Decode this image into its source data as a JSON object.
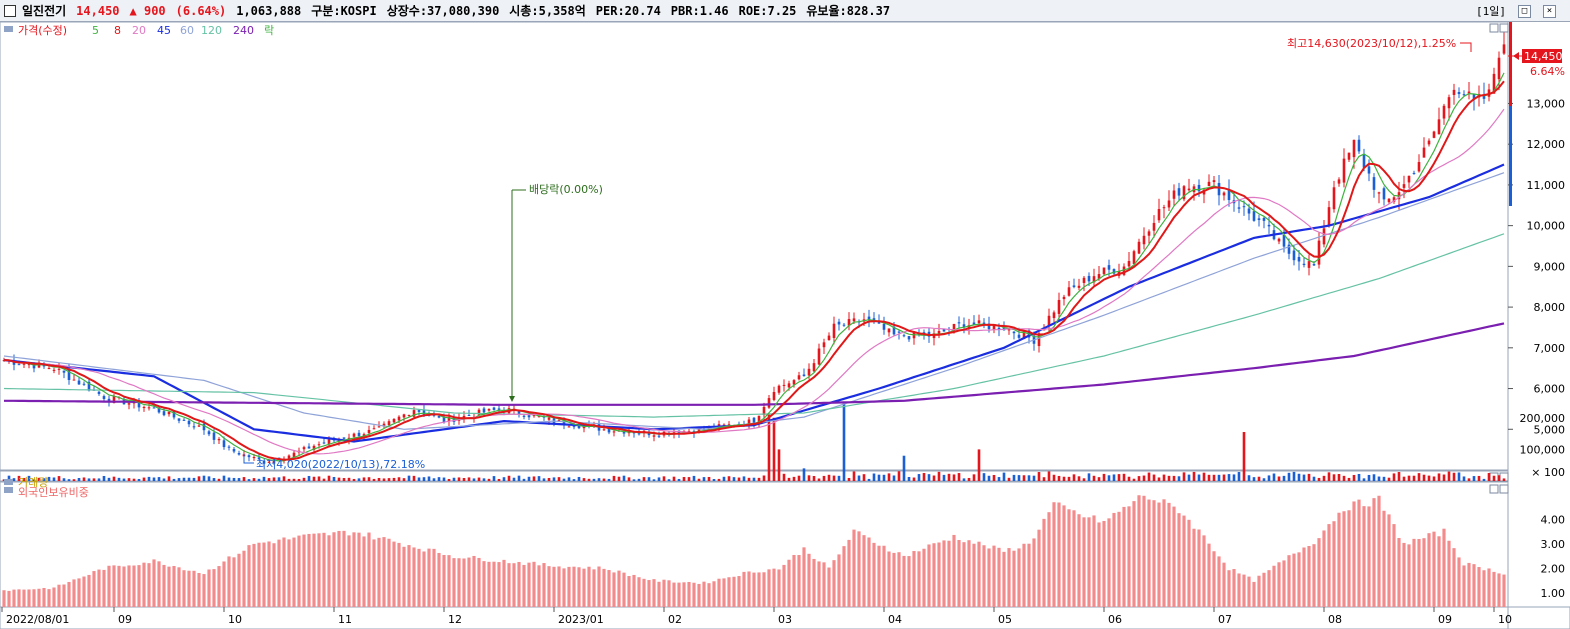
{
  "header": {
    "name": "일진전기",
    "price": "14,450",
    "change": "▲ 900",
    "change_pct": "(6.64%)",
    "volume": "1,063,888",
    "market": "구분:KOSPI",
    "shares": "상장수:37,080,390",
    "mcap": "시총:5,358억",
    "per": "PER:20.74",
    "pbr": "PBR:1.46",
    "roe": "ROE:7.25",
    "float": "유보율:828.37",
    "period": "[1일]"
  },
  "legend": {
    "price": [
      "가격(수정)",
      "5",
      "8",
      "20",
      "45",
      "60",
      "120",
      "240",
      "락"
    ],
    "volume": "거래량",
    "foreign": "외국인보유비중"
  },
  "annotations": {
    "high": "최고14,630(2023/10/12),1.25%",
    "low": "최저4,020(2022/10/13),72.18%",
    "dividend": "배당락(0.00%)",
    "price_tag": "14,450",
    "pct_tag": "6.64%"
  },
  "colors": {
    "up": "#e4151d",
    "down": "#1b5fd6",
    "ma5": "#3fb23f",
    "ma8": "#e01818",
    "ma20": "#e079c4",
    "ma45": "#1a2ee0",
    "ma60": "#8fa3d8",
    "ma120": "#66c2a5",
    "ma240": "#7a1fb0",
    "foreign": "#f28b8b"
  },
  "chart_data": [
    {
      "type": "candlestick",
      "title": "가격(수정)",
      "ylim": [
        4000,
        15000
      ],
      "y_ticks": [
        "5,000",
        "6,000",
        "7,000",
        "8,000",
        "9,000",
        "10,000",
        "11,000",
        "12,000",
        "13,000"
      ],
      "x_ticks": [
        "2022/08/01",
        "09",
        "10",
        "11",
        "12",
        "2023/01",
        "02",
        "03",
        "04",
        "05",
        "06",
        "07",
        "08",
        "09",
        "10"
      ],
      "close_path": [
        [
          0,
          6700
        ],
        [
          10,
          6500
        ],
        [
          20,
          5800
        ],
        [
          30,
          5500
        ],
        [
          40,
          5000
        ],
        [
          45,
          4500
        ],
        [
          52,
          4200
        ],
        [
          58,
          4400
        ],
        [
          62,
          4600
        ],
        [
          68,
          4800
        ],
        [
          75,
          5000
        ],
        [
          82,
          5500
        ],
        [
          88,
          5200
        ],
        [
          95,
          5400
        ],
        [
          100,
          5500
        ],
        [
          110,
          5200
        ],
        [
          120,
          5000
        ],
        [
          130,
          4900
        ],
        [
          140,
          5000
        ],
        [
          150,
          5200
        ],
        [
          154,
          6000
        ],
        [
          160,
          6300
        ],
        [
          166,
          7500
        ],
        [
          172,
          7700
        ],
        [
          178,
          7300
        ],
        [
          186,
          7300
        ],
        [
          192,
          7600
        ],
        [
          200,
          7500
        ],
        [
          206,
          7200
        ],
        [
          212,
          8300
        ],
        [
          218,
          8800
        ],
        [
          224,
          9000
        ],
        [
          230,
          10200
        ],
        [
          236,
          11000
        ],
        [
          242,
          11000
        ],
        [
          248,
          10400
        ],
        [
          252,
          10000
        ],
        [
          256,
          9400
        ],
        [
          262,
          9000
        ],
        [
          266,
          11000
        ],
        [
          270,
          12000
        ],
        [
          276,
          10500
        ],
        [
          280,
          11000
        ],
        [
          285,
          12000
        ],
        [
          290,
          13500
        ],
        [
          294,
          13000
        ],
        [
          297,
          13200
        ],
        [
          299,
          14300
        ],
        [
          300,
          14450
        ]
      ],
      "ma_series": [
        {
          "name": "45",
          "points": [
            [
              0,
              6700
            ],
            [
              30,
              6300
            ],
            [
              50,
              5000
            ],
            [
              70,
              4700
            ],
            [
              100,
              5200
            ],
            [
              130,
              5000
            ],
            [
              150,
              5100
            ],
            [
              175,
              6000
            ],
            [
              200,
              7000
            ],
            [
              225,
              8500
            ],
            [
              250,
              9700
            ],
            [
              265,
              10000
            ],
            [
              285,
              10700
            ],
            [
              300,
              11500
            ]
          ]
        },
        {
          "name": "60",
          "points": [
            [
              0,
              6800
            ],
            [
              40,
              6200
            ],
            [
              60,
              5400
            ],
            [
              80,
              5000
            ],
            [
              110,
              5200
            ],
            [
              140,
              5000
            ],
            [
              160,
              5300
            ],
            [
              190,
              6500
            ],
            [
              220,
              7800
            ],
            [
              250,
              9200
            ],
            [
              275,
              10200
            ],
            [
              300,
              11300
            ]
          ]
        },
        {
          "name": "120",
          "points": [
            [
              0,
              6000
            ],
            [
              50,
              5900
            ],
            [
              90,
              5400
            ],
            [
              130,
              5300
            ],
            [
              160,
              5400
            ],
            [
              190,
              6000
            ],
            [
              220,
              6800
            ],
            [
              250,
              7800
            ],
            [
              275,
              8700
            ],
            [
              300,
              9800
            ]
          ]
        },
        {
          "name": "240",
          "points": [
            [
              0,
              5700
            ],
            [
              100,
              5600
            ],
            [
              150,
              5600
            ],
            [
              180,
              5700
            ],
            [
              220,
              6100
            ],
            [
              250,
              6500
            ],
            [
              270,
              6800
            ],
            [
              300,
              7600
            ]
          ]
        }
      ]
    },
    {
      "type": "bar",
      "title": "거래량",
      "ylim": [
        0,
        250000
      ],
      "y_ticks": [
        "200,000",
        "100,000"
      ],
      "unit": "× 100",
      "spikes": [
        [
          153,
          210000
        ],
        [
          154,
          200000
        ],
        [
          155,
          100000
        ],
        [
          160,
          40000
        ],
        [
          168,
          250000
        ],
        [
          170,
          30000
        ],
        [
          180,
          80000
        ],
        [
          195,
          100000
        ],
        [
          248,
          155000
        ]
      ]
    },
    {
      "type": "bar",
      "title": "외국인보유비중",
      "ylim": [
        0.5,
        5
      ],
      "y_ticks": [
        "1.00",
        "2.00",
        "3.00",
        "4.00"
      ],
      "profile": [
        [
          0,
          1.1
        ],
        [
          10,
          1.2
        ],
        [
          20,
          2.0
        ],
        [
          30,
          2.3
        ],
        [
          40,
          1.8
        ],
        [
          50,
          3.0
        ],
        [
          60,
          3.3
        ],
        [
          70,
          3.5
        ],
        [
          80,
          3.0
        ],
        [
          90,
          2.5
        ],
        [
          100,
          2.3
        ],
        [
          110,
          2.1
        ],
        [
          120,
          2.0
        ],
        [
          130,
          1.5
        ],
        [
          140,
          1.4
        ],
        [
          148,
          1.8
        ],
        [
          155,
          2.0
        ],
        [
          160,
          2.8
        ],
        [
          165,
          2.0
        ],
        [
          170,
          3.5
        ],
        [
          180,
          2.5
        ],
        [
          190,
          3.3
        ],
        [
          200,
          2.7
        ],
        [
          205,
          3.0
        ],
        [
          210,
          4.6
        ],
        [
          215,
          4.2
        ],
        [
          220,
          3.9
        ],
        [
          228,
          5.0
        ],
        [
          235,
          4.4
        ],
        [
          240,
          3.3
        ],
        [
          245,
          2.0
        ],
        [
          250,
          1.5
        ],
        [
          258,
          2.6
        ],
        [
          262,
          3.1
        ],
        [
          268,
          4.5
        ],
        [
          275,
          4.8
        ],
        [
          280,
          3.0
        ],
        [
          288,
          3.5
        ],
        [
          292,
          2.2
        ],
        [
          300,
          1.8
        ]
      ]
    }
  ]
}
